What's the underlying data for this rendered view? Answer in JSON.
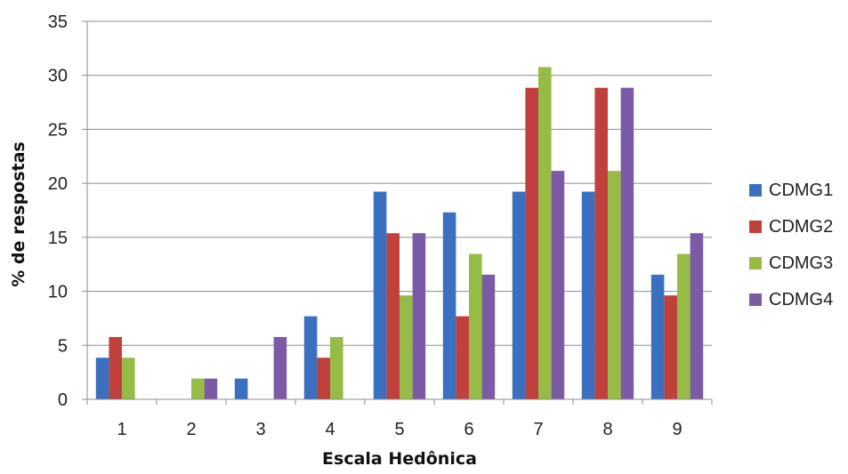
{
  "chart_data": {
    "type": "bar",
    "title": "",
    "xlabel": "Escala Hedônica",
    "ylabel": "% de respostas",
    "categories": [
      "1",
      "2",
      "3",
      "4",
      "5",
      "6",
      "7",
      "8",
      "9"
    ],
    "ylim": [
      0,
      35
    ],
    "yticks": [
      0,
      5,
      10,
      15,
      20,
      25,
      30,
      35
    ],
    "grid": true,
    "legend_position": "right",
    "series": [
      {
        "name": "CDMG1",
        "color": "#3a70bf",
        "values": [
          3.85,
          0,
          1.92,
          7.69,
          19.23,
          17.31,
          19.23,
          19.23,
          11.54
        ]
      },
      {
        "name": "CDMG2",
        "color": "#c0413c",
        "values": [
          5.77,
          0,
          0,
          3.85,
          15.38,
          7.69,
          28.85,
          28.85,
          9.62
        ]
      },
      {
        "name": "CDMG3",
        "color": "#96bc47",
        "values": [
          3.85,
          1.92,
          0,
          5.77,
          9.62,
          13.46,
          30.77,
          21.15,
          13.46
        ]
      },
      {
        "name": "CDMG4",
        "color": "#7c5ba6",
        "values": [
          0,
          1.92,
          5.77,
          0,
          15.38,
          11.54,
          21.15,
          28.85,
          15.38
        ]
      }
    ]
  }
}
